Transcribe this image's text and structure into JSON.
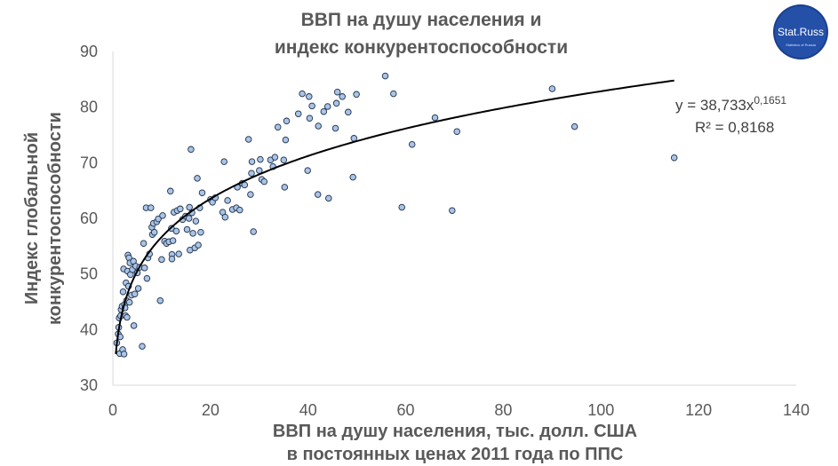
{
  "logo": {
    "text": "Stat.Russ",
    "subtext": "Statistics of Russia"
  },
  "chart_data": {
    "type": "scatter",
    "title": [
      "ВВП на душу населения и",
      "индекс конкурентоспособности"
    ],
    "xlabel": [
      "ВВП на душу населения, тыс. долл. США",
      "в постоянных ценах 2011 года по ППС"
    ],
    "ylabel": [
      "Индекс глобальной",
      "конкурентоспособности"
    ],
    "xlim": [
      0,
      140
    ],
    "ylim": [
      30,
      90
    ],
    "xticks": [
      0,
      20,
      40,
      60,
      80,
      100,
      120,
      140
    ],
    "yticks": [
      30,
      40,
      50,
      60,
      70,
      80,
      90
    ],
    "marker_fill": "#a9c4e8",
    "marker_edge": "#1f2f44",
    "trendline": {
      "type": "power",
      "a": 38.733,
      "b": 0.1651,
      "x_range": [
        0.6,
        115
      ],
      "equation_main": "y = 38,733x",
      "equation_exp": "0,1651",
      "r2_label": "R² = 0,8168"
    },
    "points": [
      [
        0.8,
        37.6
      ],
      [
        1.1,
        39.2
      ],
      [
        1.2,
        40.4
      ],
      [
        1.3,
        42.1
      ],
      [
        1.4,
        35.7
      ],
      [
        1.5,
        38.7
      ],
      [
        1.6,
        42.5
      ],
      [
        1.7,
        43.6
      ],
      [
        1.9,
        44.2
      ],
      [
        2.0,
        36.4
      ],
      [
        2.1,
        46.8
      ],
      [
        2.2,
        50.9
      ],
      [
        2.3,
        35.6
      ],
      [
        2.4,
        44.5
      ],
      [
        2.5,
        43.9
      ],
      [
        2.6,
        42.5
      ],
      [
        2.7,
        48.4
      ],
      [
        2.8,
        45.2
      ],
      [
        2.9,
        42.2
      ],
      [
        3.0,
        50.5
      ],
      [
        3.1,
        53.4
      ],
      [
        3.2,
        47.8
      ],
      [
        3.3,
        52.9
      ],
      [
        3.4,
        44.9
      ],
      [
        3.5,
        52.0
      ],
      [
        3.6,
        49.9
      ],
      [
        3.8,
        46.2
      ],
      [
        4.0,
        50.8
      ],
      [
        4.2,
        52.3
      ],
      [
        4.3,
        40.7
      ],
      [
        4.5,
        46.4
      ],
      [
        4.7,
        51.4
      ],
      [
        5.0,
        50.2
      ],
      [
        5.2,
        47.4
      ],
      [
        5.5,
        51.2
      ],
      [
        6.0,
        37.0
      ],
      [
        6.3,
        55.5
      ],
      [
        6.5,
        51.1
      ],
      [
        6.8,
        61.9
      ],
      [
        7.0,
        49.2
      ],
      [
        7.2,
        52.9
      ],
      [
        7.5,
        53.6
      ],
      [
        7.8,
        61.9
      ],
      [
        8.0,
        58.4
      ],
      [
        8.1,
        57.1
      ],
      [
        8.3,
        59.1
      ],
      [
        8.5,
        57.5
      ],
      [
        9.0,
        59.4
      ],
      [
        9.3,
        59.9
      ],
      [
        9.7,
        45.2
      ],
      [
        10.0,
        52.6
      ],
      [
        10.2,
        60.5
      ],
      [
        10.6,
        55.9
      ],
      [
        11.0,
        55.5
      ],
      [
        11.5,
        55.8
      ],
      [
        11.8,
        64.9
      ],
      [
        12.0,
        58.2
      ],
      [
        12.1,
        53.5
      ],
      [
        12.1,
        52.7
      ],
      [
        12.3,
        56.0
      ],
      [
        12.5,
        61.1
      ],
      [
        13.0,
        57.7
      ],
      [
        13.2,
        61.4
      ],
      [
        13.5,
        53.6
      ],
      [
        13.8,
        61.7
      ],
      [
        14.3,
        59.8
      ],
      [
        14.9,
        60.4
      ],
      [
        15.2,
        58.0
      ],
      [
        15.6,
        60.0
      ],
      [
        15.7,
        62.0
      ],
      [
        15.8,
        54.3
      ],
      [
        16.0,
        72.4
      ],
      [
        16.2,
        61.0
      ],
      [
        16.4,
        57.3
      ],
      [
        16.8,
        54.7
      ],
      [
        17.0,
        59.5
      ],
      [
        17.3,
        67.2
      ],
      [
        17.5,
        55.2
      ],
      [
        17.8,
        61.9
      ],
      [
        18.0,
        57.5
      ],
      [
        18.3,
        64.6
      ],
      [
        20.0,
        63.4
      ],
      [
        20.4,
        62.9
      ],
      [
        21.0,
        63.7
      ],
      [
        22.5,
        61.1
      ],
      [
        22.8,
        70.2
      ],
      [
        23.0,
        60.2
      ],
      [
        23.5,
        63.2
      ],
      [
        24.5,
        61.6
      ],
      [
        25.3,
        61.9
      ],
      [
        25.5,
        65.6
      ],
      [
        26.0,
        61.5
      ],
      [
        26.5,
        66.3
      ],
      [
        27.0,
        66.0
      ],
      [
        27.8,
        74.2
      ],
      [
        28.2,
        64.3
      ],
      [
        28.4,
        68.1
      ],
      [
        28.5,
        70.2
      ],
      [
        28.8,
        57.6
      ],
      [
        30.0,
        68.6
      ],
      [
        30.2,
        70.6
      ],
      [
        30.5,
        67.0
      ],
      [
        31.0,
        66.6
      ],
      [
        32.3,
        70.5
      ],
      [
        32.8,
        69.3
      ],
      [
        33.2,
        71.0
      ],
      [
        33.8,
        76.4
      ],
      [
        35.0,
        70.5
      ],
      [
        35.2,
        65.6
      ],
      [
        35.4,
        74.1
      ],
      [
        35.6,
        77.5
      ],
      [
        38.0,
        78.8
      ],
      [
        38.8,
        82.4
      ],
      [
        39.9,
        68.6
      ],
      [
        40.2,
        81.9
      ],
      [
        40.3,
        78.0
      ],
      [
        40.8,
        80.2
      ],
      [
        42.0,
        64.3
      ],
      [
        42.1,
        76.6
      ],
      [
        43.2,
        79.2
      ],
      [
        44.0,
        80.1
      ],
      [
        44.2,
        63.6
      ],
      [
        45.6,
        76.2
      ],
      [
        45.8,
        80.7
      ],
      [
        46.0,
        82.7
      ],
      [
        47.0,
        81.9
      ],
      [
        48.2,
        79.1
      ],
      [
        49.2,
        67.4
      ],
      [
        49.4,
        74.4
      ],
      [
        49.9,
        82.3
      ],
      [
        55.8,
        85.6
      ],
      [
        57.5,
        82.4
      ],
      [
        59.2,
        62.0
      ],
      [
        61.3,
        73.3
      ],
      [
        66.0,
        78.1
      ],
      [
        69.5,
        61.4
      ],
      [
        70.5,
        75.6
      ],
      [
        90.0,
        83.3
      ],
      [
        94.6,
        76.5
      ],
      [
        115.0,
        70.9
      ]
    ]
  }
}
